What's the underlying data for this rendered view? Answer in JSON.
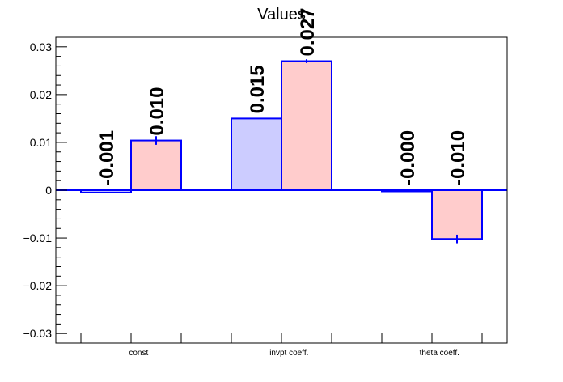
{
  "chart_data": {
    "type": "bar",
    "title": "Values",
    "xlabel": "",
    "ylabel": "",
    "ylim": [
      -0.032,
      0.032
    ],
    "yticks": [
      -0.03,
      -0.02,
      -0.01,
      0,
      0.01,
      0.02,
      0.03
    ],
    "ytick_labels": [
      "−0.03",
      "−0.02",
      "−0.01",
      "0",
      "0.01",
      "0.02",
      "0.03"
    ],
    "categories": [
      "const",
      "invpt coeff.",
      "theta coeff."
    ],
    "grid": false,
    "legend": "none",
    "series": [
      {
        "color": "#ccccff",
        "edge": "#0000ff",
        "values": [
          -0.0005,
          0.015,
          0.0
        ],
        "errors": [
          0.0,
          0.0,
          0.0
        ],
        "labels": [
          "-0.001",
          "0.015",
          "-0.000"
        ]
      },
      {
        "color": "#ffcccc",
        "edge": "#0000ff",
        "values": [
          0.0104,
          0.027,
          -0.0102
        ],
        "errors": [
          0.0009,
          0.0004,
          0.0009
        ],
        "labels": [
          "0.010",
          "0.027",
          "-0.010"
        ]
      }
    ]
  }
}
